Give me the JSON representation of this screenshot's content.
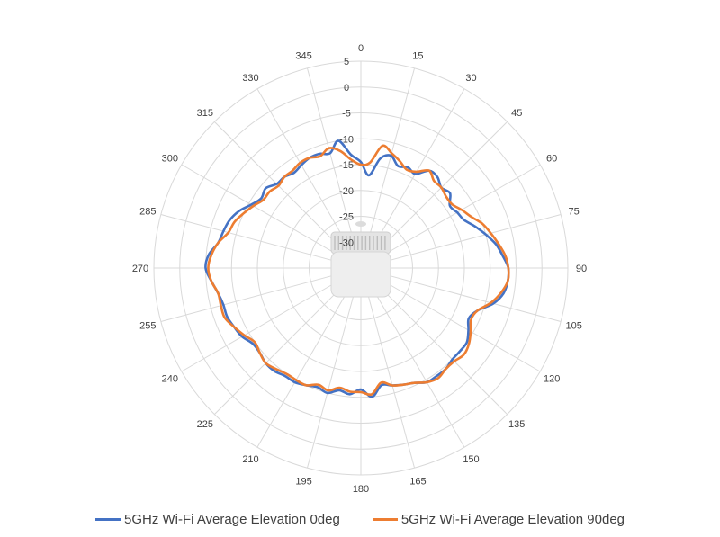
{
  "chart_data": {
    "type": "polar-line",
    "title": "",
    "angle_ticks": [
      "0",
      "15",
      "30",
      "45",
      "60",
      "75",
      "90",
      "105",
      "120",
      "135",
      "150",
      "165",
      "180",
      "195",
      "210",
      "225",
      "240",
      "255",
      "270",
      "285",
      "300",
      "315",
      "330",
      "345"
    ],
    "radial_ticks": [
      "5",
      "0",
      "-5",
      "-10",
      "-15",
      "-20",
      "-25",
      "-30"
    ],
    "radial_range": [
      -35,
      5
    ],
    "grid": true,
    "legend_position": "bottom",
    "series": [
      {
        "name": "5GHz Wi-Fi Average Elevation 0deg",
        "color": "#4472C4",
        "angles": [
          0,
          5,
          10,
          15,
          20,
          25,
          30,
          35,
          40,
          45,
          50,
          55,
          60,
          65,
          70,
          75,
          80,
          85,
          90,
          95,
          100,
          105,
          110,
          115,
          120,
          125,
          130,
          135,
          140,
          145,
          150,
          155,
          160,
          165,
          170,
          175,
          180,
          185,
          190,
          195,
          200,
          205,
          210,
          215,
          220,
          225,
          230,
          235,
          240,
          245,
          250,
          255,
          260,
          265,
          270,
          275,
          280,
          285,
          290,
          295,
          300,
          305,
          310,
          315,
          320,
          325,
          330,
          335,
          340,
          345,
          350,
          355
        ],
        "values": [
          -14.5,
          -17,
          -13.5,
          -12.5,
          -14,
          -13.5,
          -14,
          -12,
          -12,
          -13,
          -12.5,
          -14,
          -13.5,
          -13,
          -11.5,
          -10,
          -8.5,
          -7.5,
          -6.5,
          -6.5,
          -7,
          -8.5,
          -11,
          -12,
          -11,
          -10,
          -10,
          -10,
          -9.5,
          -9.5,
          -9.5,
          -10.5,
          -11,
          -11.5,
          -12,
          -10,
          -11.5,
          -10.5,
          -11,
          -10,
          -10.5,
          -10,
          -9.5,
          -9.5,
          -9,
          -9,
          -9.5,
          -9.5,
          -8.5,
          -8,
          -7.5,
          -7.5,
          -7,
          -6,
          -5,
          -5.5,
          -7,
          -7.5,
          -8,
          -9,
          -10.5,
          -11.5,
          -11,
          -12,
          -12,
          -12.5,
          -12,
          -11.5,
          -11.5,
          -12,
          -10,
          -13
        ]
      },
      {
        "name": "5GHz Wi-Fi Average Elevation 90deg",
        "color": "#ED7D31",
        "angles": [
          0,
          5,
          10,
          15,
          20,
          25,
          30,
          35,
          40,
          45,
          50,
          55,
          60,
          65,
          70,
          75,
          80,
          85,
          90,
          95,
          100,
          105,
          110,
          115,
          120,
          125,
          130,
          135,
          140,
          145,
          150,
          155,
          160,
          165,
          170,
          175,
          180,
          185,
          190,
          195,
          200,
          205,
          210,
          215,
          220,
          225,
          230,
          235,
          240,
          245,
          250,
          255,
          260,
          265,
          270,
          275,
          280,
          285,
          290,
          295,
          300,
          305,
          310,
          315,
          320,
          325,
          330,
          335,
          340,
          345,
          350,
          355
        ],
        "values": [
          -15,
          -14.5,
          -11,
          -12,
          -13,
          -14,
          -13.5,
          -12,
          -13,
          -13,
          -13.5,
          -13.5,
          -12.5,
          -11.5,
          -10,
          -9,
          -8,
          -7,
          -6.5,
          -6.5,
          -7.5,
          -9,
          -11,
          -11.5,
          -10.5,
          -9.5,
          -9,
          -9.5,
          -9.5,
          -9,
          -9.5,
          -10.5,
          -11,
          -11.5,
          -12.5,
          -10.5,
          -11,
          -11,
          -11.5,
          -10.5,
          -11,
          -10,
          -10,
          -10,
          -9.5,
          -9,
          -9.5,
          -10,
          -9,
          -8,
          -7,
          -7,
          -7,
          -6,
          -5.5,
          -6,
          -7,
          -8.5,
          -9,
          -10,
          -11,
          -12,
          -12,
          -12.5,
          -12,
          -12,
          -11.5,
          -11.5,
          -12,
          -11,
          -12,
          -14
        ]
      }
    ]
  },
  "legend": {
    "items": [
      {
        "label": "5GHz Wi-Fi Average Elevation 0deg",
        "color": "#4472C4"
      },
      {
        "label": "5GHz Wi-Fi Average Elevation 90deg",
        "color": "#ED7D31"
      }
    ]
  },
  "center_image": {
    "icon": "access-point-device-icon"
  }
}
